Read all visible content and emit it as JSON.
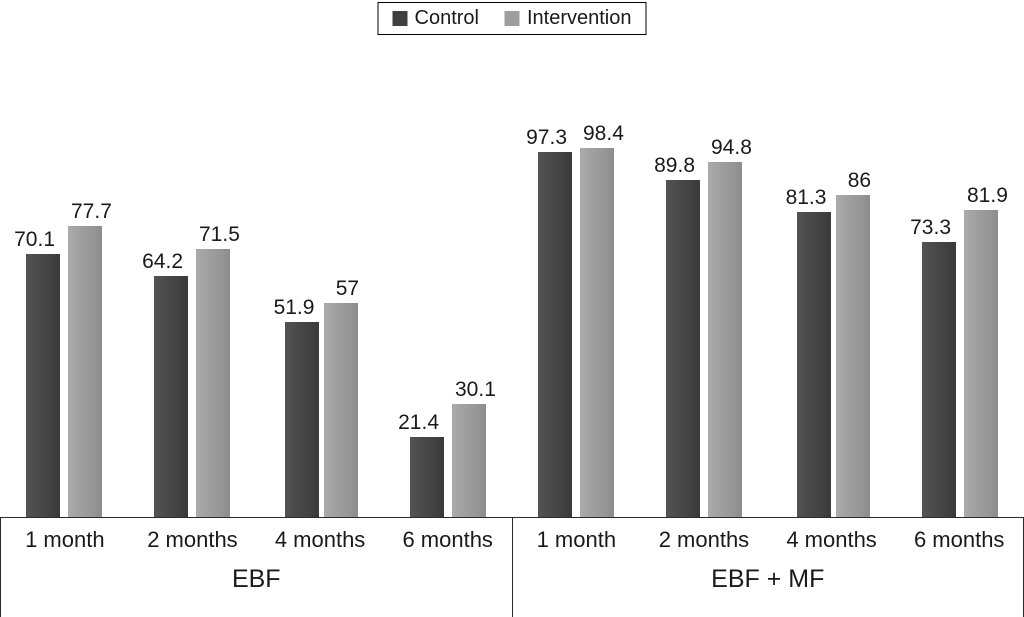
{
  "legend": {
    "items": [
      {
        "label": "Control",
        "color": "#3f3f3f"
      },
      {
        "label": "Intervention",
        "color": "#9e9e9e"
      }
    ]
  },
  "chart_data": {
    "type": "bar",
    "title": "",
    "xlabel": "",
    "ylabel": "",
    "ylim": [
      0,
      100
    ],
    "grid": false,
    "legend_position": "top-center",
    "categories": [
      "1 month",
      "2 months",
      "4 months",
      "6 months"
    ],
    "groups": [
      {
        "label": "EBF",
        "categories": [
          "1 month",
          "2 months",
          "4 months",
          "6 months"
        ],
        "series": [
          {
            "name": "Control",
            "values": [
              70.1,
              64.2,
              51.9,
              21.4
            ]
          },
          {
            "name": "Intervention",
            "values": [
              77.7,
              71.5,
              57,
              30.1
            ]
          }
        ]
      },
      {
        "label": "EBF + MF",
        "categories": [
          "1 month",
          "2 months",
          "4 months",
          "6 months"
        ],
        "series": [
          {
            "name": "Control",
            "values": [
              97.3,
              89.8,
              81.3,
              73.3
            ]
          },
          {
            "name": "Intervention",
            "values": [
              98.4,
              94.8,
              86,
              81.9
            ]
          }
        ]
      }
    ]
  }
}
